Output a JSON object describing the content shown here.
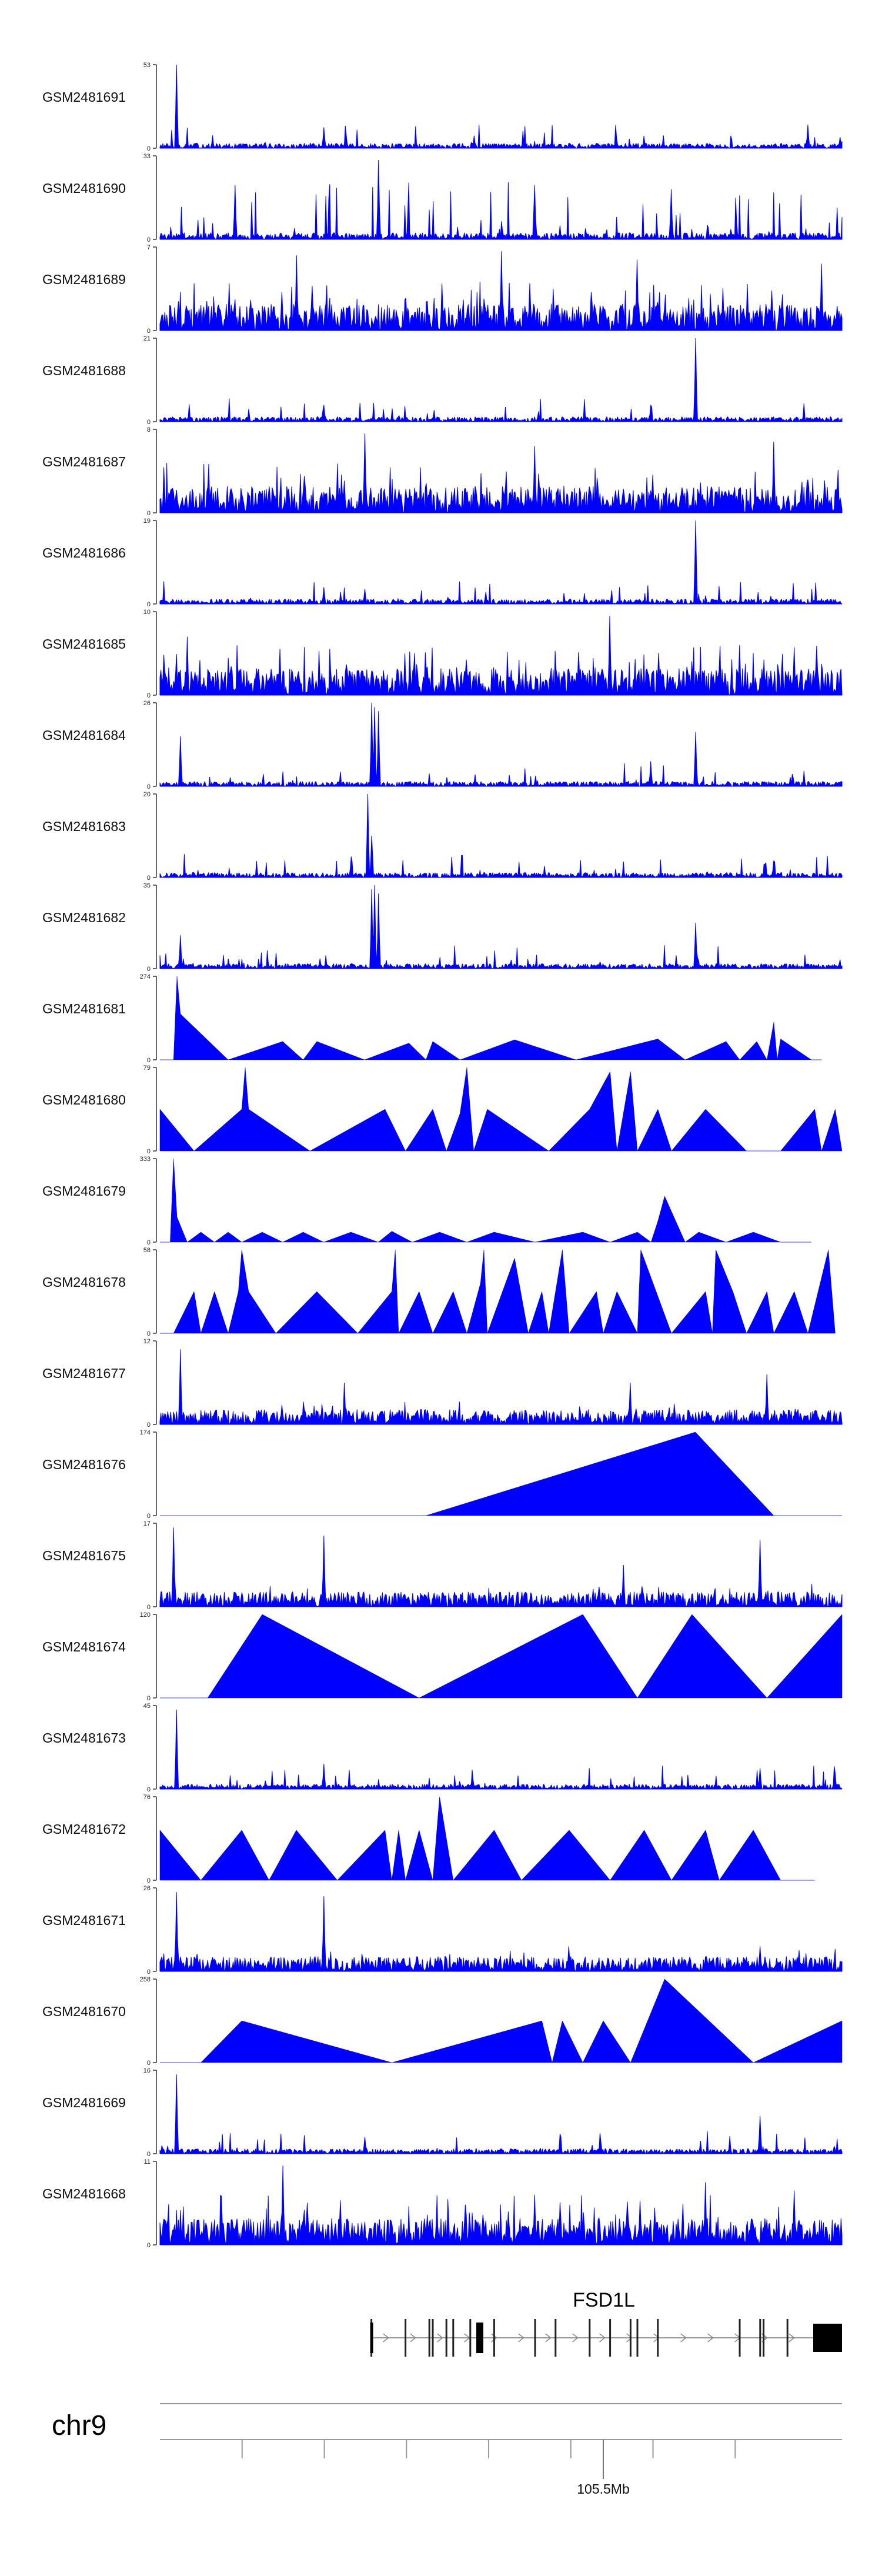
{
  "chart_data": {
    "type": "area",
    "colors": {
      "signal": "#0000ff",
      "axis": "#333333",
      "gene": "#000000"
    },
    "tracks": [
      {
        "name": "GSM2481691",
        "ymax": "53",
        "ymin": "0",
        "peak": 53,
        "style": "sparse",
        "peaks": [
          [
            0.025,
            1.0
          ],
          [
            0.24,
            0.25
          ],
          [
            0.46,
            0.15
          ],
          [
            0.67,
            0.12
          ],
          [
            0.95,
            0.28
          ]
        ]
      },
      {
        "name": "GSM2481690",
        "ymax": "33",
        "ymin": "0",
        "peak": 33,
        "style": "spiky",
        "peaks": [
          [
            0.11,
            0.65
          ],
          [
            0.32,
            0.95
          ],
          [
            0.55,
            0.65
          ],
          [
            0.75,
            0.6
          ]
        ]
      },
      {
        "name": "GSM2481689",
        "ymax": "7",
        "ymin": "0",
        "peak": 7,
        "style": "dense",
        "peaks": [
          [
            0.2,
            0.9
          ],
          [
            0.5,
            0.95
          ],
          [
            0.7,
            0.85
          ],
          [
            0.97,
            0.8
          ]
        ]
      },
      {
        "name": "GSM2481688",
        "ymax": "21",
        "ymin": "0",
        "peak": 21,
        "style": "sparse",
        "peaks": [
          [
            0.24,
            0.2
          ],
          [
            0.72,
            0.2
          ],
          [
            0.785,
            1.0
          ]
        ]
      },
      {
        "name": "GSM2481687",
        "ymax": "8",
        "ymin": "0",
        "peak": 8,
        "style": "dense",
        "peaks": [
          [
            0.3,
            0.95
          ],
          [
            0.55,
            0.8
          ],
          [
            0.9,
            0.85
          ]
        ]
      },
      {
        "name": "GSM2481686",
        "ymax": "19",
        "ymin": "0",
        "peak": 19,
        "style": "sparse",
        "peaks": [
          [
            0.24,
            0.2
          ],
          [
            0.3,
            0.18
          ],
          [
            0.785,
            1.0
          ]
        ]
      },
      {
        "name": "GSM2481685",
        "ymax": "10",
        "ymin": "0",
        "peak": 10,
        "style": "dense",
        "peaks": [
          [
            0.04,
            0.7
          ],
          [
            0.66,
            0.95
          ],
          [
            0.85,
            0.6
          ]
        ]
      },
      {
        "name": "GSM2481684",
        "ymax": "26",
        "ymin": "0",
        "peak": 26,
        "style": "sparse",
        "peaks": [
          [
            0.03,
            0.6
          ],
          [
            0.31,
            1.0
          ],
          [
            0.315,
            0.95
          ],
          [
            0.32,
            0.9
          ],
          [
            0.72,
            0.3
          ],
          [
            0.785,
            0.65
          ]
        ]
      },
      {
        "name": "GSM2481683",
        "ymax": "20",
        "ymin": "0",
        "peak": 20,
        "style": "sparse",
        "peaks": [
          [
            0.28,
            0.25
          ],
          [
            0.305,
            1.0
          ],
          [
            0.31,
            0.5
          ],
          [
            0.9,
            0.2
          ]
        ]
      },
      {
        "name": "GSM2481682",
        "ymax": "35",
        "ymin": "0",
        "peak": 35,
        "style": "sparse",
        "peaks": [
          [
            0.03,
            0.4
          ],
          [
            0.31,
            0.95
          ],
          [
            0.315,
            1.0
          ],
          [
            0.32,
            0.9
          ],
          [
            0.785,
            0.55
          ]
        ]
      },
      {
        "name": "GSM2481681",
        "ymax": "274",
        "ymin": "0",
        "peak": 274,
        "style": "tri",
        "points": [
          [
            0.0,
            0
          ],
          [
            0.02,
            0
          ],
          [
            0.025,
            1.0
          ],
          [
            0.03,
            0.55
          ],
          [
            0.1,
            0
          ],
          [
            0.18,
            0.22
          ],
          [
            0.21,
            0
          ],
          [
            0.23,
            0.22
          ],
          [
            0.3,
            0
          ],
          [
            0.365,
            0.2
          ],
          [
            0.39,
            0
          ],
          [
            0.4,
            0.22
          ],
          [
            0.44,
            0
          ],
          [
            0.52,
            0.24
          ],
          [
            0.61,
            0
          ],
          [
            0.73,
            0.25
          ],
          [
            0.77,
            0
          ],
          [
            0.83,
            0.22
          ],
          [
            0.85,
            0
          ],
          [
            0.875,
            0.22
          ],
          [
            0.89,
            0
          ],
          [
            0.9,
            0.45
          ],
          [
            0.905,
            0
          ],
          [
            0.91,
            0.25
          ],
          [
            0.955,
            0
          ],
          [
            0.97,
            0
          ]
        ]
      },
      {
        "name": "GSM2481680",
        "ymax": "79",
        "ymin": "0",
        "peak": 79,
        "style": "tri",
        "points": [
          [
            0.0,
            0.5
          ],
          [
            0.05,
            0
          ],
          [
            0.12,
            0.5
          ],
          [
            0.125,
            1.0
          ],
          [
            0.13,
            0.5
          ],
          [
            0.22,
            0
          ],
          [
            0.33,
            0.5
          ],
          [
            0.36,
            0
          ],
          [
            0.4,
            0.5
          ],
          [
            0.42,
            0
          ],
          [
            0.44,
            0.45
          ],
          [
            0.45,
            1.0
          ],
          [
            0.46,
            0
          ],
          [
            0.48,
            0.5
          ],
          [
            0.57,
            0
          ],
          [
            0.63,
            0.5
          ],
          [
            0.66,
            0.95
          ],
          [
            0.67,
            0
          ],
          [
            0.69,
            0.95
          ],
          [
            0.7,
            0
          ],
          [
            0.73,
            0.5
          ],
          [
            0.75,
            0
          ],
          [
            0.8,
            0.5
          ],
          [
            0.86,
            0
          ],
          [
            0.91,
            0
          ],
          [
            0.96,
            0.5
          ],
          [
            0.97,
            0
          ],
          [
            0.99,
            0.5
          ],
          [
            1.0,
            0
          ]
        ]
      },
      {
        "name": "GSM2481679",
        "ymax": "333",
        "ymin": "0",
        "peak": 333,
        "style": "tri",
        "points": [
          [
            0.0,
            0
          ],
          [
            0.015,
            0
          ],
          [
            0.02,
            1.0
          ],
          [
            0.025,
            0.3
          ],
          [
            0.04,
            0
          ],
          [
            0.06,
            0.12
          ],
          [
            0.08,
            0
          ],
          [
            0.1,
            0.12
          ],
          [
            0.12,
            0
          ],
          [
            0.15,
            0.12
          ],
          [
            0.18,
            0
          ],
          [
            0.21,
            0.12
          ],
          [
            0.24,
            0
          ],
          [
            0.28,
            0.12
          ],
          [
            0.32,
            0
          ],
          [
            0.34,
            0.13
          ],
          [
            0.37,
            0
          ],
          [
            0.41,
            0.12
          ],
          [
            0.45,
            0
          ],
          [
            0.49,
            0.12
          ],
          [
            0.55,
            0
          ],
          [
            0.62,
            0.12
          ],
          [
            0.66,
            0
          ],
          [
            0.7,
            0.12
          ],
          [
            0.72,
            0
          ],
          [
            0.73,
            0.25
          ],
          [
            0.74,
            0.55
          ],
          [
            0.77,
            0
          ],
          [
            0.79,
            0.12
          ],
          [
            0.83,
            0
          ],
          [
            0.87,
            0.12
          ],
          [
            0.91,
            0
          ],
          [
            0.955,
            0
          ]
        ]
      },
      {
        "name": "GSM2481678",
        "ymax": "58",
        "ymin": "0",
        "peak": 58,
        "style": "tri",
        "points": [
          [
            0.0,
            0
          ],
          [
            0.02,
            0
          ],
          [
            0.05,
            0.5
          ],
          [
            0.06,
            0
          ],
          [
            0.08,
            0.5
          ],
          [
            0.1,
            0
          ],
          [
            0.115,
            0.5
          ],
          [
            0.12,
            1.0
          ],
          [
            0.13,
            0.5
          ],
          [
            0.17,
            0
          ],
          [
            0.23,
            0.5
          ],
          [
            0.29,
            0
          ],
          [
            0.34,
            0.5
          ],
          [
            0.345,
            1.0
          ],
          [
            0.35,
            0
          ],
          [
            0.38,
            0.5
          ],
          [
            0.4,
            0
          ],
          [
            0.43,
            0.5
          ],
          [
            0.45,
            0
          ],
          [
            0.47,
            0.6
          ],
          [
            0.475,
            1.0
          ],
          [
            0.48,
            0
          ],
          [
            0.52,
            0.9
          ],
          [
            0.54,
            0
          ],
          [
            0.56,
            0.5
          ],
          [
            0.57,
            0
          ],
          [
            0.58,
            0.5
          ],
          [
            0.59,
            1.0
          ],
          [
            0.6,
            0
          ],
          [
            0.64,
            0.5
          ],
          [
            0.65,
            0
          ],
          [
            0.67,
            0.5
          ],
          [
            0.7,
            0
          ],
          [
            0.705,
            1.0
          ],
          [
            0.75,
            0
          ],
          [
            0.8,
            0.5
          ],
          [
            0.81,
            0
          ],
          [
            0.815,
            1.0
          ],
          [
            0.84,
            0.5
          ],
          [
            0.86,
            0
          ],
          [
            0.89,
            0.5
          ],
          [
            0.9,
            0
          ],
          [
            0.93,
            0.5
          ],
          [
            0.95,
            0
          ],
          [
            0.98,
            1.0
          ],
          [
            0.99,
            0
          ]
        ]
      },
      {
        "name": "GSM2481677",
        "ymax": "12",
        "ymin": "0",
        "peak": 12,
        "style": "medium",
        "peaks": [
          [
            0.03,
            0.9
          ],
          [
            0.27,
            0.5
          ],
          [
            0.69,
            0.5
          ],
          [
            0.89,
            0.6
          ]
        ]
      },
      {
        "name": "GSM2481676",
        "ymax": "174",
        "ymin": "0",
        "peak": 174,
        "style": "tri",
        "points": [
          [
            0.0,
            0
          ],
          [
            0.39,
            0
          ],
          [
            0.785,
            1.0
          ],
          [
            0.9,
            0
          ],
          [
            1.0,
            0
          ]
        ]
      },
      {
        "name": "GSM2481675",
        "ymax": "17",
        "ymin": "0",
        "peak": 17,
        "style": "medium",
        "peaks": [
          [
            0.02,
            0.95
          ],
          [
            0.24,
            0.85
          ],
          [
            0.68,
            0.5
          ],
          [
            0.88,
            0.8
          ]
        ]
      },
      {
        "name": "GSM2481674",
        "ymax": "120",
        "ymin": "0",
        "peak": 120,
        "style": "tri",
        "points": [
          [
            0.0,
            0
          ],
          [
            0.07,
            0
          ],
          [
            0.15,
            1.0
          ],
          [
            0.38,
            0
          ],
          [
            0.62,
            1.0
          ],
          [
            0.7,
            0
          ],
          [
            0.78,
            1.0
          ],
          [
            0.89,
            0
          ],
          [
            1.0,
            1.0
          ]
        ]
      },
      {
        "name": "GSM2481673",
        "ymax": "45",
        "ymin": "0",
        "peak": 45,
        "style": "sparse",
        "peaks": [
          [
            0.025,
            0.95
          ],
          [
            0.24,
            0.3
          ],
          [
            0.88,
            0.25
          ]
        ]
      },
      {
        "name": "GSM2481672",
        "ymax": "76",
        "ymin": "0",
        "peak": 76,
        "style": "tri",
        "points": [
          [
            0.0,
            0.6
          ],
          [
            0.06,
            0
          ],
          [
            0.12,
            0.6
          ],
          [
            0.16,
            0
          ],
          [
            0.2,
            0.6
          ],
          [
            0.26,
            0
          ],
          [
            0.33,
            0.6
          ],
          [
            0.34,
            0
          ],
          [
            0.35,
            0.6
          ],
          [
            0.36,
            0
          ],
          [
            0.38,
            0.6
          ],
          [
            0.4,
            0
          ],
          [
            0.41,
            1.0
          ],
          [
            0.43,
            0
          ],
          [
            0.49,
            0.6
          ],
          [
            0.53,
            0
          ],
          [
            0.6,
            0.6
          ],
          [
            0.66,
            0
          ],
          [
            0.71,
            0.6
          ],
          [
            0.75,
            0
          ],
          [
            0.8,
            0.6
          ],
          [
            0.82,
            0
          ],
          [
            0.87,
            0.6
          ],
          [
            0.91,
            0
          ],
          [
            0.96,
            0
          ]
        ]
      },
      {
        "name": "GSM2481671",
        "ymax": "26",
        "ymin": "0",
        "peak": 26,
        "style": "medium",
        "peaks": [
          [
            0.025,
            0.95
          ],
          [
            0.24,
            0.9
          ],
          [
            0.6,
            0.3
          ],
          [
            0.88,
            0.3
          ]
        ]
      },
      {
        "name": "GSM2481670",
        "ymax": "258",
        "ymin": "0",
        "peak": 258,
        "style": "tri",
        "points": [
          [
            0.0,
            0
          ],
          [
            0.06,
            0
          ],
          [
            0.12,
            0.5
          ],
          [
            0.34,
            0
          ],
          [
            0.56,
            0.5
          ],
          [
            0.575,
            0
          ],
          [
            0.59,
            0.5
          ],
          [
            0.62,
            0
          ],
          [
            0.65,
            0.5
          ],
          [
            0.69,
            0
          ],
          [
            0.74,
            1.0
          ],
          [
            0.87,
            0
          ],
          [
            1.0,
            0.5
          ]
        ]
      },
      {
        "name": "GSM2481669",
        "ymax": "16",
        "ymin": "0",
        "peak": 16,
        "style": "sparse",
        "peaks": [
          [
            0.025,
            0.95
          ],
          [
            0.3,
            0.2
          ],
          [
            0.88,
            0.45
          ]
        ]
      },
      {
        "name": "GSM2481668",
        "ymax": "11",
        "ymin": "0",
        "peak": 11,
        "style": "dense",
        "peaks": [
          [
            0.18,
            0.95
          ],
          [
            0.55,
            0.6
          ],
          [
            0.8,
            0.75
          ],
          [
            0.93,
            0.65
          ]
        ]
      }
    ],
    "gene": {
      "name": "FSD1L",
      "start_frac": 0.31,
      "end_frac": 1.0,
      "exons": [
        0.31,
        0.36,
        0.395,
        0.4,
        0.42,
        0.43,
        0.455,
        0.49,
        0.55,
        0.58,
        0.63,
        0.66,
        0.69,
        0.7,
        0.73,
        0.85,
        0.88,
        0.885,
        0.92
      ]
    },
    "chrom": {
      "name": "chr9",
      "tick_label": "105.5Mb",
      "tick_frac": 0.65
    }
  }
}
